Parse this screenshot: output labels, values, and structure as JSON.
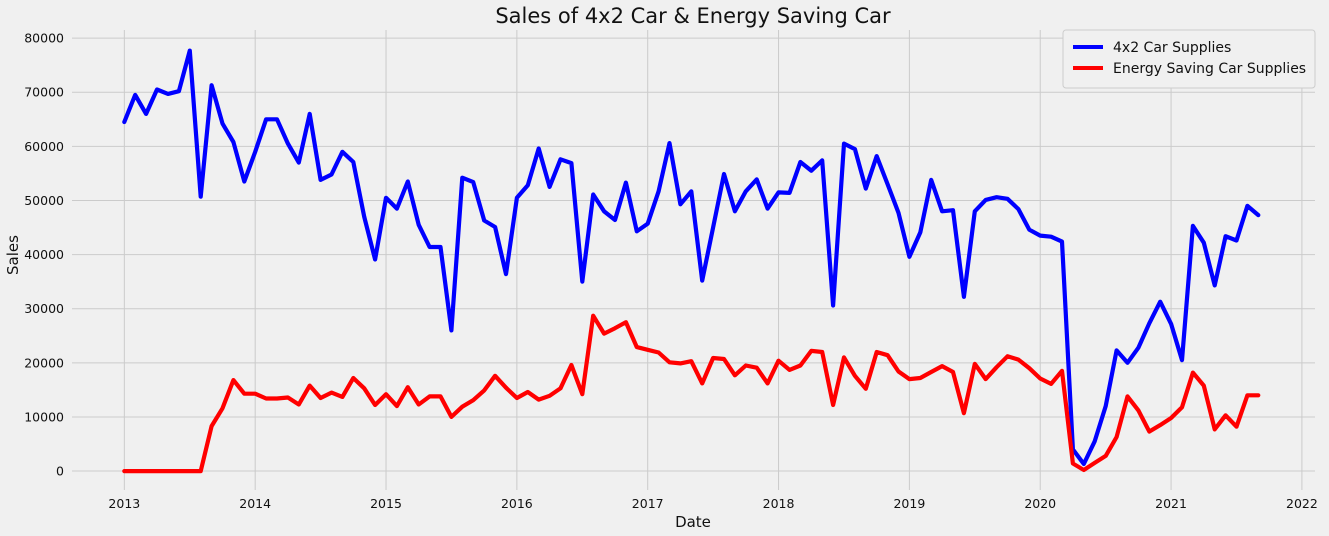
{
  "chart_data": {
    "type": "line",
    "title": "Sales of 4x2 Car & Energy Saving Car",
    "xlabel": "Date",
    "ylabel": "Sales",
    "xlim": [
      2012.6,
      2022.1
    ],
    "ylim": [
      -3500,
      81500
    ],
    "x_ticks": [
      2013,
      2014,
      2015,
      2016,
      2017,
      2018,
      2019,
      2020,
      2021,
      2022
    ],
    "y_ticks": [
      0,
      10000,
      20000,
      30000,
      40000,
      50000,
      60000,
      70000,
      80000
    ],
    "grid": true,
    "legend_position": "top-right",
    "x_start": "2013-01",
    "x_end": "2021-09",
    "x_step": "month",
    "series": [
      {
        "name": "4x2 Car Supplies",
        "color": "#0000ff",
        "values": [
          64500,
          69500,
          66000,
          70500,
          69700,
          70200,
          77700,
          50700,
          71300,
          64200,
          60800,
          53500,
          59000,
          65000,
          65000,
          60500,
          57000,
          66000,
          53800,
          54800,
          59000,
          57100,
          47000,
          39100,
          50500,
          48500,
          53500,
          45500,
          41400,
          41400,
          26000,
          54200,
          53400,
          46300,
          45100,
          36400,
          50500,
          52800,
          59600,
          52500,
          57600,
          56900,
          35000,
          51100,
          48000,
          46400,
          53300,
          44300,
          45700,
          51700,
          60600,
          49300,
          51700,
          35200,
          45000,
          54900,
          48000,
          51700,
          53900,
          48500,
          51500,
          51400,
          57100,
          55500,
          57400,
          30600,
          60500,
          59500,
          52200,
          58200,
          53000,
          47700,
          39600,
          44100,
          53800,
          48000,
          48200,
          32200,
          48000,
          50100,
          50600,
          50300,
          48400,
          44600,
          43500,
          43300,
          42400,
          4000,
          1300,
          5500,
          12000,
          22300,
          20000,
          22800,
          27300,
          31300,
          27200,
          20500,
          45300,
          42200,
          34300,
          43400,
          42600,
          49000,
          47300
        ]
      },
      {
        "name": "Energy Saving Car Supplies",
        "color": "#ff0000",
        "values": [
          0,
          0,
          0,
          0,
          0,
          0,
          0,
          0,
          8300,
          11600,
          16800,
          14300,
          14300,
          13400,
          13400,
          13600,
          12300,
          15800,
          13500,
          14500,
          13700,
          17200,
          15300,
          12200,
          14200,
          12000,
          15500,
          12300,
          13800,
          13800,
          10000,
          11900,
          13100,
          14900,
          17600,
          15400,
          13500,
          14600,
          13200,
          13900,
          15300,
          19600,
          14200,
          28700,
          25400,
          26400,
          27500,
          22900,
          22400,
          21900,
          20100,
          19900,
          20300,
          16200,
          20900,
          20700,
          17700,
          19500,
          19100,
          16200,
          20400,
          18700,
          19500,
          22200,
          22000,
          12200,
          21000,
          17600,
          15200,
          22000,
          21400,
          18400,
          17000,
          17200,
          18300,
          19400,
          18300,
          10700,
          19800,
          17000,
          19200,
          21200,
          20600,
          19000,
          17100,
          16100,
          18500,
          1400,
          200,
          1500,
          2800,
          6300,
          13800,
          11200,
          7300,
          8500,
          9800,
          11800,
          18200,
          15800,
          7700,
          10300,
          8200,
          14000,
          14000
        ]
      }
    ]
  }
}
